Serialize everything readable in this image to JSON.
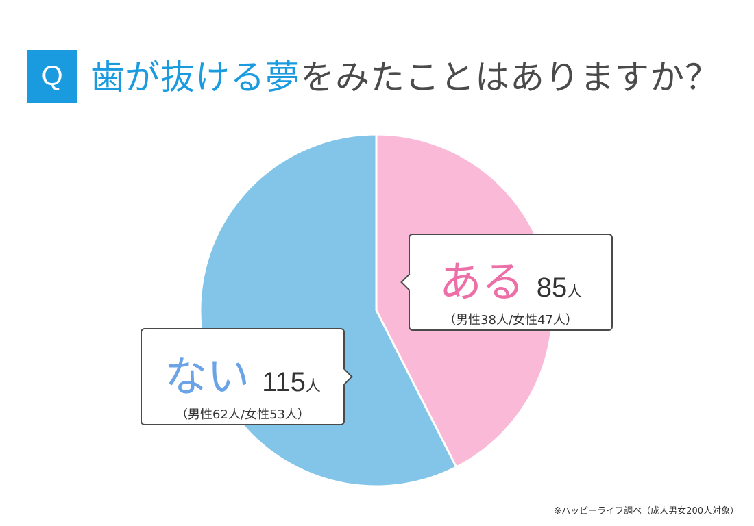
{
  "header": {
    "badge": "Q",
    "question_highlight": "歯が抜ける夢",
    "question_rest": "をみたことはありますか？"
  },
  "chart_data": {
    "type": "pie",
    "slices": [
      {
        "label": "ある",
        "value": 85,
        "unit": "人",
        "detail": "（男性38人/女性47人）",
        "color": "#fbb9d8"
      },
      {
        "label": "ない",
        "value": 115,
        "unit": "人",
        "detail": "（男性62人/女性53人）",
        "color": "#82c5e8"
      }
    ]
  },
  "source": "※ハッピーライフ調べ（成人男女200人対象）"
}
